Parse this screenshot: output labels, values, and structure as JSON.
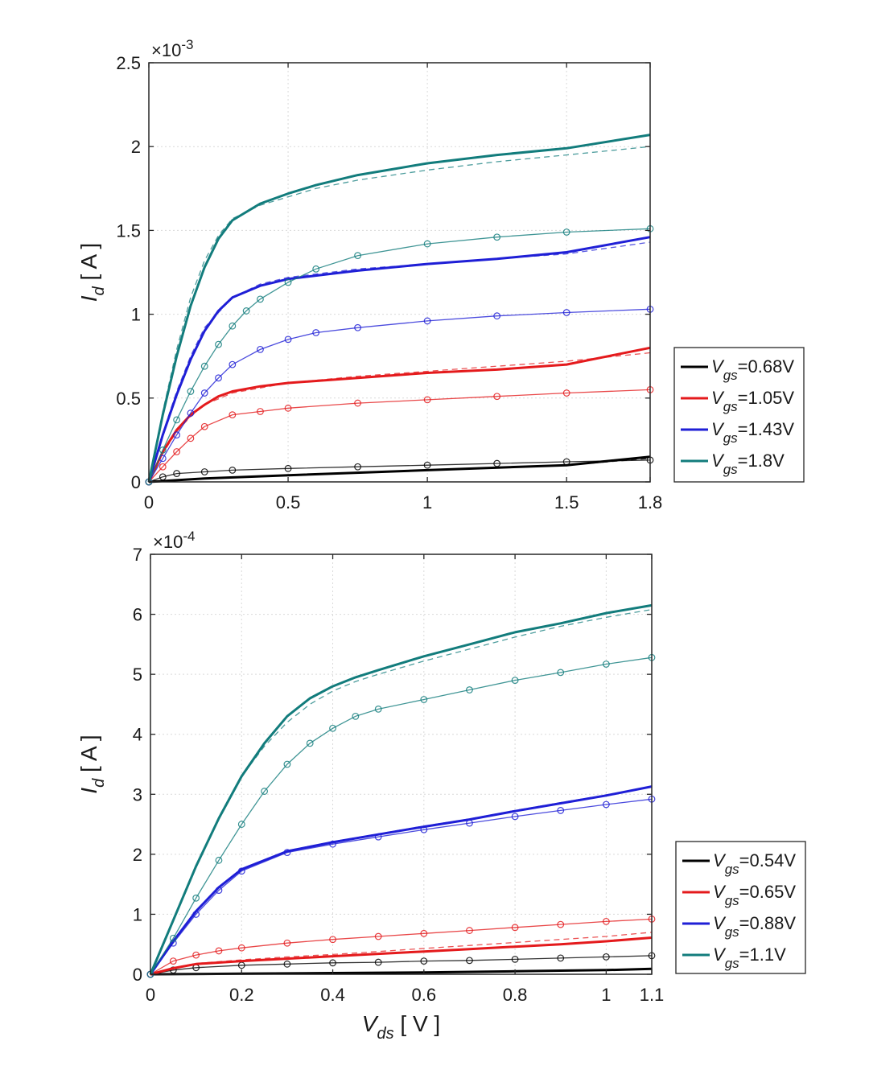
{
  "chart_data": [
    {
      "type": "line",
      "exponent": "×10",
      "exponent_power": "-3",
      "ylabel": "I",
      "ylabel_sub": "d",
      "ylabel_unit": "[ A ]",
      "xlabel": "",
      "xlabel_sub": "",
      "xlabel_unit": "",
      "xlim": [
        0,
        1.8
      ],
      "ylim": [
        0,
        2.5
      ],
      "xticks": [
        0,
        0.5,
        1,
        1.5,
        1.8
      ],
      "xtick_labels": [
        "0",
        "0.5",
        "1",
        "1.5",
        "1.8"
      ],
      "yticks": [
        0,
        0.5,
        1,
        1.5,
        2,
        2.5
      ],
      "ytick_labels": [
        "0",
        "0.5",
        "1",
        "1.5",
        "2",
        "2.5"
      ],
      "grid": true,
      "legend_position": "right-outside",
      "legend": [
        {
          "label": "V",
          "sub": "gs",
          "value": "=0.68V",
          "color": "#000000"
        },
        {
          "label": "V",
          "sub": "gs",
          "value": "=1.05V",
          "color": "#e41a1c"
        },
        {
          "label": "V",
          "sub": "gs",
          "value": "=1.43V",
          "color": "#1f1fd6"
        },
        {
          "label": "V",
          "sub": "gs",
          "value": "=1.8V",
          "color": "#127c7c"
        }
      ],
      "series": [
        {
          "color": "#000000",
          "style": "solid",
          "x": [
            0,
            0.2,
            0.5,
            1.0,
            1.5,
            1.8
          ],
          "y": [
            0,
            0.02,
            0.04,
            0.07,
            0.1,
            0.15
          ]
        },
        {
          "color": "#000000",
          "style": "dashed",
          "x": [
            0,
            0.2,
            0.5,
            1.0,
            1.5,
            1.8
          ],
          "y": [
            0,
            0.02,
            0.04,
            0.07,
            0.1,
            0.14
          ]
        },
        {
          "color": "#000000",
          "style": "marker",
          "x": [
            0,
            0.05,
            0.1,
            0.2,
            0.3,
            0.5,
            0.75,
            1.0,
            1.25,
            1.5,
            1.8
          ],
          "y": [
            0,
            0.03,
            0.05,
            0.06,
            0.07,
            0.08,
            0.09,
            0.1,
            0.11,
            0.12,
            0.13
          ]
        },
        {
          "color": "#e41a1c",
          "style": "solid",
          "x": [
            0,
            0.05,
            0.1,
            0.15,
            0.2,
            0.25,
            0.3,
            0.4,
            0.5,
            0.75,
            1.0,
            1.25,
            1.5,
            1.65,
            1.8
          ],
          "y": [
            0,
            0.18,
            0.31,
            0.4,
            0.46,
            0.51,
            0.54,
            0.57,
            0.59,
            0.62,
            0.65,
            0.67,
            0.7,
            0.75,
            0.8
          ]
        },
        {
          "color": "#e41a1c",
          "style": "dashed",
          "x": [
            0,
            0.05,
            0.1,
            0.15,
            0.2,
            0.3,
            0.5,
            0.75,
            1.0,
            1.25,
            1.5,
            1.8
          ],
          "y": [
            0,
            0.17,
            0.3,
            0.39,
            0.46,
            0.53,
            0.59,
            0.63,
            0.66,
            0.69,
            0.72,
            0.77
          ]
        },
        {
          "color": "#e41a1c",
          "style": "marker",
          "x": [
            0,
            0.05,
            0.1,
            0.15,
            0.2,
            0.3,
            0.4,
            0.5,
            0.75,
            1.0,
            1.25,
            1.5,
            1.8
          ],
          "y": [
            0,
            0.09,
            0.18,
            0.26,
            0.33,
            0.4,
            0.42,
            0.44,
            0.47,
            0.49,
            0.51,
            0.53,
            0.55
          ]
        },
        {
          "color": "#1f1fd6",
          "style": "solid",
          "x": [
            0,
            0.05,
            0.1,
            0.15,
            0.2,
            0.25,
            0.3,
            0.4,
            0.5,
            0.75,
            1.0,
            1.25,
            1.5,
            1.8
          ],
          "y": [
            0,
            0.28,
            0.52,
            0.73,
            0.9,
            1.02,
            1.1,
            1.17,
            1.21,
            1.26,
            1.3,
            1.33,
            1.37,
            1.46
          ]
        },
        {
          "color": "#1f1fd6",
          "style": "dashed",
          "x": [
            0,
            0.05,
            0.1,
            0.15,
            0.2,
            0.3,
            0.4,
            0.5,
            0.75,
            1.0,
            1.25,
            1.5,
            1.8
          ],
          "y": [
            0,
            0.29,
            0.54,
            0.75,
            0.92,
            1.1,
            1.18,
            1.22,
            1.27,
            1.3,
            1.33,
            1.36,
            1.43
          ]
        },
        {
          "color": "#1f1fd6",
          "style": "marker",
          "x": [
            0,
            0.05,
            0.1,
            0.15,
            0.2,
            0.25,
            0.3,
            0.4,
            0.5,
            0.6,
            0.75,
            1.0,
            1.25,
            1.5,
            1.8
          ],
          "y": [
            0,
            0.14,
            0.28,
            0.41,
            0.53,
            0.62,
            0.7,
            0.79,
            0.85,
            0.89,
            0.92,
            0.96,
            0.99,
            1.01,
            1.03
          ]
        },
        {
          "color": "#127c7c",
          "style": "solid",
          "x": [
            0,
            0.05,
            0.1,
            0.15,
            0.2,
            0.25,
            0.3,
            0.4,
            0.5,
            0.6,
            0.75,
            1.0,
            1.25,
            1.5,
            1.8
          ],
          "y": [
            0,
            0.4,
            0.75,
            1.05,
            1.28,
            1.45,
            1.56,
            1.66,
            1.72,
            1.77,
            1.83,
            1.9,
            1.95,
            1.99,
            2.07
          ]
        },
        {
          "color": "#127c7c",
          "style": "dashed",
          "x": [
            0,
            0.05,
            0.1,
            0.15,
            0.2,
            0.25,
            0.3,
            0.4,
            0.5,
            0.6,
            0.75,
            1.0,
            1.25,
            1.5,
            1.8
          ],
          "y": [
            0,
            0.42,
            0.79,
            1.1,
            1.32,
            1.47,
            1.57,
            1.65,
            1.7,
            1.75,
            1.8,
            1.86,
            1.91,
            1.95,
            2.0
          ]
        },
        {
          "color": "#127c7c",
          "style": "marker",
          "x": [
            0,
            0.05,
            0.1,
            0.15,
            0.2,
            0.25,
            0.3,
            0.35,
            0.4,
            0.5,
            0.6,
            0.75,
            1.0,
            1.25,
            1.5,
            1.8
          ],
          "y": [
            0,
            0.19,
            0.37,
            0.54,
            0.69,
            0.82,
            0.93,
            1.02,
            1.09,
            1.19,
            1.27,
            1.35,
            1.42,
            1.46,
            1.49,
            1.51
          ]
        }
      ]
    },
    {
      "type": "line",
      "exponent": "×10",
      "exponent_power": "-4",
      "ylabel": "I",
      "ylabel_sub": "d",
      "ylabel_unit": "[ A ]",
      "xlabel": "V",
      "xlabel_sub": "ds",
      "xlabel_unit": "[ V ]",
      "xlim": [
        0,
        1.1
      ],
      "ylim": [
        0,
        7
      ],
      "xticks": [
        0,
        0.2,
        0.4,
        0.6,
        0.8,
        1,
        1.1
      ],
      "xtick_labels": [
        "0",
        "0.2",
        "0.4",
        "0.6",
        "0.8",
        "1",
        "1.1"
      ],
      "yticks": [
        0,
        1,
        2,
        3,
        4,
        5,
        6,
        7
      ],
      "ytick_labels": [
        "0",
        "1",
        "2",
        "3",
        "4",
        "5",
        "6",
        "7"
      ],
      "grid": true,
      "legend_position": "right-outside",
      "legend": [
        {
          "label": "V",
          "sub": "gs",
          "value": "=0.54V",
          "color": "#000000"
        },
        {
          "label": "V",
          "sub": "gs",
          "value": "=0.65V",
          "color": "#e41a1c"
        },
        {
          "label": "V",
          "sub": "gs",
          "value": "=0.88V",
          "color": "#1f1fd6"
        },
        {
          "label": "V",
          "sub": "gs",
          "value": "=1.1V",
          "color": "#127c7c"
        }
      ],
      "series": [
        {
          "color": "#000000",
          "style": "solid",
          "x": [
            0,
            0.2,
            0.4,
            0.6,
            0.8,
            1.0,
            1.1
          ],
          "y": [
            0,
            0.01,
            0.02,
            0.03,
            0.05,
            0.07,
            0.09
          ]
        },
        {
          "color": "#000000",
          "style": "dashed",
          "x": [
            0,
            0.2,
            0.4,
            0.6,
            0.8,
            1.0,
            1.1
          ],
          "y": [
            0,
            0.01,
            0.02,
            0.03,
            0.05,
            0.07,
            0.09
          ]
        },
        {
          "color": "#000000",
          "style": "marker",
          "x": [
            0,
            0.05,
            0.1,
            0.2,
            0.3,
            0.4,
            0.5,
            0.6,
            0.7,
            0.8,
            0.9,
            1.0,
            1.1
          ],
          "y": [
            0,
            0.07,
            0.11,
            0.15,
            0.17,
            0.19,
            0.2,
            0.22,
            0.23,
            0.25,
            0.27,
            0.29,
            0.31
          ]
        },
        {
          "color": "#e41a1c",
          "style": "solid",
          "x": [
            0,
            0.05,
            0.1,
            0.2,
            0.3,
            0.4,
            0.5,
            0.6,
            0.7,
            0.8,
            0.9,
            1.0,
            1.1
          ],
          "y": [
            0,
            0.1,
            0.17,
            0.22,
            0.26,
            0.3,
            0.34,
            0.38,
            0.42,
            0.46,
            0.5,
            0.55,
            0.61
          ]
        },
        {
          "color": "#e41a1c",
          "style": "dashed",
          "x": [
            0,
            0.05,
            0.1,
            0.2,
            0.3,
            0.4,
            0.5,
            0.6,
            0.7,
            0.8,
            0.9,
            1.0,
            1.1
          ],
          "y": [
            0,
            0.11,
            0.18,
            0.24,
            0.29,
            0.33,
            0.38,
            0.43,
            0.48,
            0.53,
            0.58,
            0.63,
            0.7
          ]
        },
        {
          "color": "#e41a1c",
          "style": "marker",
          "x": [
            0,
            0.05,
            0.1,
            0.15,
            0.2,
            0.3,
            0.4,
            0.5,
            0.6,
            0.7,
            0.8,
            0.9,
            1.0,
            1.1
          ],
          "y": [
            0,
            0.22,
            0.32,
            0.39,
            0.44,
            0.52,
            0.58,
            0.63,
            0.68,
            0.73,
            0.78,
            0.83,
            0.88,
            0.92
          ]
        },
        {
          "color": "#1f1fd6",
          "style": "solid",
          "x": [
            0,
            0.05,
            0.1,
            0.15,
            0.2,
            0.3,
            0.4,
            0.5,
            0.6,
            0.7,
            0.8,
            0.9,
            1.0,
            1.1
          ],
          "y": [
            0,
            0.55,
            1.05,
            1.45,
            1.75,
            2.05,
            2.2,
            2.33,
            2.46,
            2.58,
            2.72,
            2.85,
            2.98,
            3.13
          ]
        },
        {
          "color": "#1f1fd6",
          "style": "dashed",
          "x": [
            0,
            0.05,
            0.1,
            0.15,
            0.2,
            0.3,
            0.4,
            0.5,
            0.6,
            0.7,
            0.8,
            0.9,
            1.0,
            1.1
          ],
          "y": [
            0,
            0.56,
            1.06,
            1.46,
            1.76,
            2.06,
            2.21,
            2.34,
            2.47,
            2.59,
            2.73,
            2.86,
            2.99,
            3.12
          ]
        },
        {
          "color": "#1f1fd6",
          "style": "marker",
          "x": [
            0,
            0.05,
            0.1,
            0.15,
            0.2,
            0.3,
            0.4,
            0.5,
            0.6,
            0.7,
            0.8,
            0.9,
            1.0,
            1.1
          ],
          "y": [
            0,
            0.52,
            1.0,
            1.4,
            1.72,
            2.03,
            2.17,
            2.29,
            2.41,
            2.52,
            2.63,
            2.73,
            2.83,
            2.92
          ]
        },
        {
          "color": "#127c7c",
          "style": "solid",
          "x": [
            0,
            0.05,
            0.1,
            0.15,
            0.2,
            0.25,
            0.3,
            0.35,
            0.4,
            0.45,
            0.5,
            0.6,
            0.7,
            0.8,
            0.9,
            1.0,
            1.1
          ],
          "y": [
            0,
            0.9,
            1.8,
            2.6,
            3.3,
            3.85,
            4.3,
            4.6,
            4.8,
            4.95,
            5.07,
            5.3,
            5.5,
            5.7,
            5.85,
            6.02,
            6.15
          ]
        },
        {
          "color": "#127c7c",
          "style": "dashed",
          "x": [
            0,
            0.05,
            0.1,
            0.15,
            0.2,
            0.25,
            0.3,
            0.35,
            0.4,
            0.45,
            0.5,
            0.6,
            0.7,
            0.8,
            0.9,
            1.0,
            1.1
          ],
          "y": [
            0,
            0.88,
            1.78,
            2.62,
            3.3,
            3.8,
            4.2,
            4.5,
            4.72,
            4.88,
            5.0,
            5.22,
            5.42,
            5.62,
            5.8,
            5.95,
            6.08
          ]
        },
        {
          "color": "#127c7c",
          "style": "marker",
          "x": [
            0,
            0.05,
            0.1,
            0.15,
            0.2,
            0.25,
            0.3,
            0.35,
            0.4,
            0.45,
            0.5,
            0.6,
            0.7,
            0.8,
            0.9,
            1.0,
            1.1
          ],
          "y": [
            0,
            0.6,
            1.27,
            1.9,
            2.5,
            3.05,
            3.5,
            3.85,
            4.1,
            4.3,
            4.42,
            4.58,
            4.74,
            4.9,
            5.03,
            5.17,
            5.28
          ]
        }
      ]
    }
  ]
}
